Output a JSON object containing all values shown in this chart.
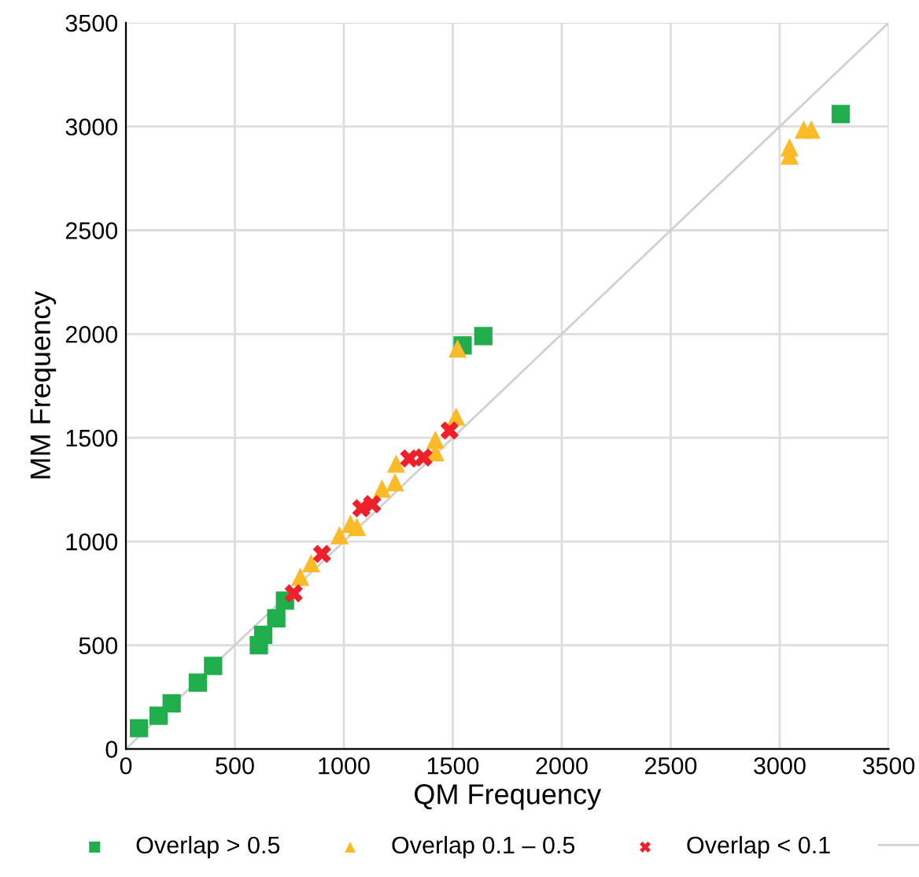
{
  "chart_data": {
    "type": "scatter",
    "xlabel": "QM Frequency",
    "ylabel": "MM Frequency",
    "xlim": [
      0,
      3500
    ],
    "ylim": [
      0,
      3500
    ],
    "xticks": [
      0,
      500,
      1000,
      1500,
      2000,
      2500,
      3000,
      3500
    ],
    "yticks": [
      0,
      500,
      1000,
      1500,
      2000,
      2500,
      3000,
      3500
    ],
    "grid": true,
    "legend": "bottom",
    "series": [
      {
        "name": "Overlap > 0.5",
        "color": "#1fae4b",
        "marker": "square",
        "x": [
          60,
          150,
          210,
          330,
          400,
          610,
          630,
          690,
          730,
          1545,
          1640,
          3140,
          3280
        ],
        "values": [
          100,
          160,
          220,
          320,
          400,
          500,
          550,
          630,
          715,
          1945,
          1990,
          null,
          3060
        ]
      },
      {
        "name": "Overlap 0.1 – 0.5",
        "color": "#fbbb28",
        "marker": "triangle",
        "x": [
          800,
          850,
          980,
          1030,
          1060,
          1175,
          1235,
          1240,
          1420,
          1420,
          1515,
          1522,
          3045,
          3045,
          3110,
          3145
        ],
        "values": [
          830,
          895,
          1030,
          1085,
          1070,
          1255,
          1285,
          1375,
          1430,
          1490,
          1602,
          1930,
          2860,
          2900,
          2985,
          2985
        ]
      },
      {
        "name": "Overlap < 0.1",
        "color": "#f0202a",
        "marker": "cross",
        "x": [
          770,
          900,
          1080,
          1130,
          1300,
          1365,
          1485
        ],
        "values": [
          750,
          940,
          1160,
          1180,
          1400,
          1405,
          1535
        ]
      },
      {
        "type": "line",
        "color": "#d0d0d0",
        "marker": "none",
        "x": [
          0,
          3500
        ],
        "values": [
          0,
          3500
        ]
      }
    ]
  }
}
